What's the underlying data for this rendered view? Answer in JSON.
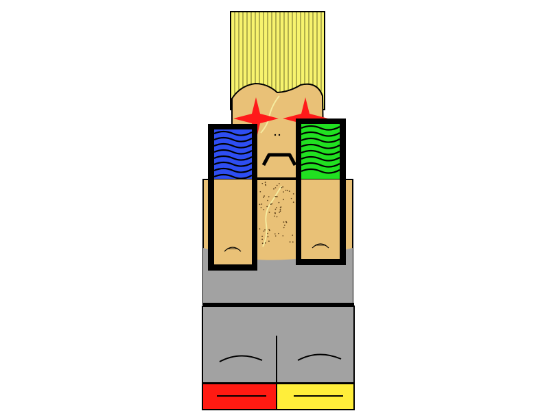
{
  "figure": {
    "subject": "character-illustration",
    "palette": {
      "background": "#ffffff",
      "outline": "#000000",
      "hair": "#f7f36e",
      "skin": "#e9c177",
      "star": "#ff1a1a",
      "left_armband": "#2e4ef2",
      "right_armband": "#21e021",
      "shirt": "#a2a2a2",
      "pants": "#a2a2a2",
      "left_boot": "#ff1a12",
      "right_boot": "#ffee3a",
      "scar": "#f5eba0",
      "chest_hair": "#5a3e1a"
    },
    "parts": [
      "hair-icon",
      "head-icon",
      "star-eye-icon",
      "mustache-icon",
      "torso-icon",
      "armband-icon",
      "pants-icon",
      "boot-icon"
    ]
  }
}
